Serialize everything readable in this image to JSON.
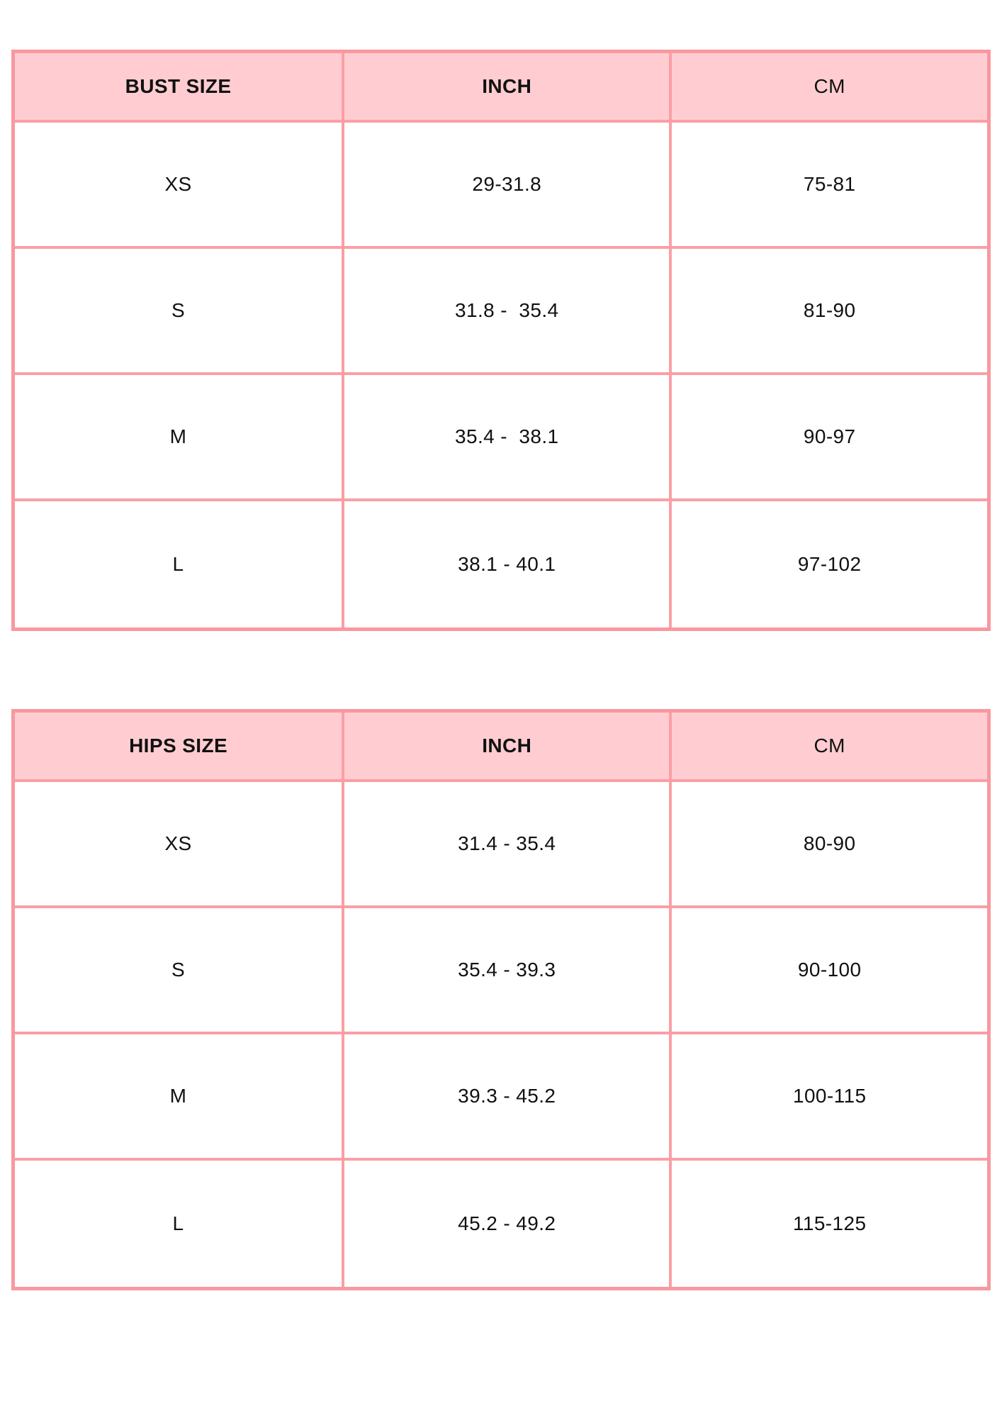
{
  "colors": {
    "header_fill": "#ffcdd1",
    "grid_border": "#fa9fa5",
    "outer_border": "#f8989f",
    "text": "#111111",
    "page_background": "#ffffff"
  },
  "tables": [
    {
      "name": "bust-size-table",
      "columns": [
        "BUST SIZE",
        "INCH",
        "CM"
      ],
      "rows": [
        [
          "XS",
          "29-31.8",
          "75-81"
        ],
        [
          "S",
          "31.8 -  35.4",
          "81-90"
        ],
        [
          "M",
          "35.4 -  38.1",
          "90-97"
        ],
        [
          "L",
          "38.1 - 40.1",
          "97-102"
        ]
      ]
    },
    {
      "name": "hips-size-table",
      "columns": [
        "HIPS SIZE",
        "INCH",
        "CM"
      ],
      "rows": [
        [
          "XS",
          "31.4 - 35.4",
          "80-90"
        ],
        [
          "S",
          "35.4 - 39.3",
          "90-100"
        ],
        [
          "M",
          "39.3 - 45.2",
          "100-115"
        ],
        [
          "L",
          "45.2 - 49.2",
          "115-125"
        ]
      ]
    }
  ]
}
